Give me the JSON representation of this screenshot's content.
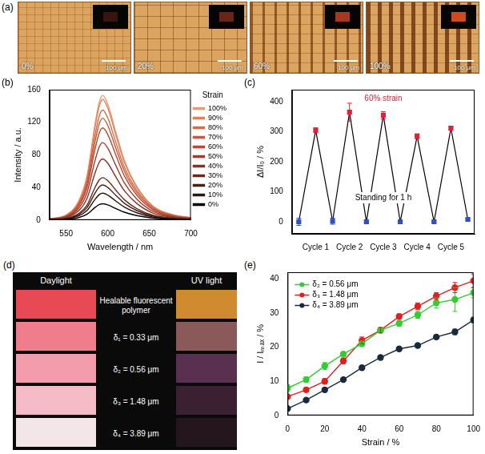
{
  "panel_a": {
    "panel_label": "(a)",
    "labels": [
      "0%",
      "20%",
      "60%",
      "100%"
    ],
    "scale_bar": "100 μm"
  },
  "chart_data": [
    {
      "panel_label": "(b)",
      "type": "line",
      "x_label": "Wavelength / nm",
      "y_label": "Intensity / a.u.",
      "x": [
        530,
        550,
        565,
        575,
        585,
        590,
        594,
        600,
        610,
        620,
        635,
        655,
        680,
        700
      ],
      "series": [
        {
          "name": "0%",
          "color": "#000000",
          "values": [
            0.2,
            0.8,
            3,
            7,
            15.6,
            19,
            20,
            18.6,
            14,
            9.6,
            5.4,
            2.2,
            0.8,
            0.4
          ]
        },
        {
          "name": "10%",
          "color": "#2a1612",
          "values": [
            0.3,
            1.3,
            5,
            11.6,
            25.7,
            31.4,
            33,
            30.7,
            23.1,
            15.8,
            8.9,
            3.6,
            1.3,
            0.7
          ]
        },
        {
          "name": "20%",
          "color": "#4b2016",
          "values": [
            0.4,
            1.7,
            6.5,
            15.1,
            33.5,
            40.9,
            43,
            40,
            30.1,
            20.6,
            11.6,
            4.7,
            1.7,
            0.9
          ]
        },
        {
          "name": "30%",
          "color": "#6a291b",
          "values": [
            0.5,
            2.1,
            7.8,
            18.2,
            40.6,
            49.4,
            52,
            48.4,
            36.4,
            25,
            14,
            5.7,
            2.1,
            1
          ]
        },
        {
          "name": "40%",
          "color": "#873222",
          "values": [
            0.8,
            3,
            11.3,
            26.3,
            58.5,
            71.3,
            75,
            69.8,
            52.5,
            36,
            20.3,
            8.3,
            3,
            1.5
          ]
        },
        {
          "name": "50%",
          "color": "#a03c29",
          "values": [
            1,
            3.8,
            14.3,
            33.3,
            74.1,
            90.3,
            95,
            88.4,
            66.5,
            45.6,
            25.7,
            10.5,
            3.8,
            1.9
          ]
        },
        {
          "name": "60%",
          "color": "#b64a31",
          "values": [
            1.1,
            4.5,
            17,
            39.6,
            88.1,
            107.4,
            113,
            105.1,
            79.1,
            54.2,
            30.5,
            12.4,
            4.5,
            2.3
          ]
        },
        {
          "name": "70%",
          "color": "#c75a3b",
          "values": [
            1.3,
            5,
            18.8,
            43.8,
            97.5,
            118.8,
            125,
            116.3,
            87.5,
            60,
            33.8,
            13.8,
            5,
            2.5
          ]
        },
        {
          "name": "80%",
          "color": "#d56c48",
          "values": [
            1.4,
            5.4,
            20.3,
            47.3,
            105.3,
            128.3,
            135,
            125.6,
            94.5,
            64.8,
            36.5,
            14.9,
            5.4,
            2.7
          ]
        },
        {
          "name": "90%",
          "color": "#df8159",
          "values": [
            1.5,
            5.9,
            22.2,
            51.8,
            115.4,
            140.6,
            148,
            137.6,
            103.6,
            71,
            40,
            16.3,
            5.9,
            3
          ]
        },
        {
          "name": "100%",
          "color": "#ea9a70",
          "values": [
            1.5,
            6.1,
            23,
            53.6,
            119.3,
            145.4,
            153,
            142.3,
            107.1,
            73.4,
            41.3,
            16.8,
            6.1,
            3.1
          ]
        }
      ],
      "xlim": [
        530,
        700
      ],
      "xticks": [
        550,
        600,
        650,
        700
      ],
      "ylim": [
        0,
        160
      ],
      "yticks": [
        0,
        40,
        80,
        120,
        160
      ],
      "legend": "right",
      "legend_title": "Strain",
      "marker": "none",
      "grid": false
    },
    {
      "panel_label": "(c)",
      "type": "line",
      "y_label": "ΔI/I₀ / %",
      "annotations": [
        "60% strain",
        "Standing for 1 h"
      ],
      "x": [
        0,
        1,
        2,
        3,
        4,
        5,
        6,
        7,
        8,
        9,
        10
      ],
      "values": [
        0,
        305,
        2,
        365,
        0,
        355,
        0,
        285,
        0,
        312,
        8
      ],
      "errors": [
        12,
        8,
        10,
        30,
        6,
        12,
        4,
        8,
        3,
        6,
        3
      ],
      "color": "#000000",
      "colors": [
        "#3050c0",
        "#e0203a",
        "#3050c0",
        "#e0203a",
        "#3050c0",
        "#e0203a",
        "#3050c0",
        "#e0203a",
        "#3050c0",
        "#e0203a",
        "#3050c0"
      ],
      "marker": "square",
      "xlim": [
        -0.4,
        10.4
      ],
      "xticks": [
        {
          "value": 1,
          "label": "Cycle 1"
        },
        {
          "value": 3,
          "label": "Cycle 2"
        },
        {
          "value": 5,
          "label": "Cycle 3"
        },
        {
          "value": 7,
          "label": "Cycle 4"
        },
        {
          "value": 9,
          "label": "Cycle 5"
        }
      ],
      "ylim": [
        -40,
        440
      ],
      "yticks": [
        0,
        100,
        200,
        300,
        400
      ],
      "grid": false
    },
    {
      "panel_label": "(e)",
      "type": "line",
      "x_label": "Strain / %",
      "y_label": "I / Iₘₐₓ / %",
      "x": [
        0,
        10,
        20,
        30,
        40,
        50,
        60,
        70,
        80,
        90,
        100
      ],
      "series": [
        {
          "name": "δ₂ = 0.56 μm",
          "color": "#33cc33",
          "values": [
            8,
            10.5,
            14.5,
            18,
            21,
            25,
            27,
            29.5,
            33,
            34,
            36
          ],
          "errors": [
            1,
            0.8,
            1,
            0.6,
            0.8,
            0.6,
            0.8,
            1,
            1.5,
            3.5,
            1.5
          ]
        },
        {
          "name": "δ₃ = 1.48 μm",
          "color": "#e02020",
          "values": [
            5.5,
            7.5,
            10,
            16,
            22,
            25,
            29,
            32,
            35,
            37.5,
            39.5
          ],
          "errors": [
            0.5,
            0.6,
            0.8,
            0.8,
            1,
            0.8,
            0.8,
            1,
            1,
            1.5,
            2
          ]
        },
        {
          "name": "δ₄ = 3.89 μm",
          "color": "#1a2a3a",
          "values": [
            2,
            4.5,
            7.5,
            10.5,
            14,
            17,
            19.5,
            20.5,
            23,
            24.5,
            28
          ],
          "errors": [
            0.4,
            0.4,
            0.5,
            0.5,
            0.6,
            0.5,
            0.5,
            0.6,
            0.6,
            0.8,
            0.8
          ]
        }
      ],
      "xlim": [
        0,
        100
      ],
      "xticks": [
        0,
        20,
        40,
        60,
        80,
        100
      ],
      "ylim": [
        0,
        42
      ],
      "yticks": [
        0,
        10,
        20,
        30,
        40
      ],
      "legend": "upper left",
      "marker": "circle",
      "grid": false
    }
  ],
  "panel_d": {
    "panel_label": "(d)",
    "headings": [
      "Daylight",
      "UV light"
    ],
    "rows": [
      {
        "label": "Healable fluorescent polymer",
        "daylight_color": "#e84a55",
        "uv_color": "#d08a30"
      },
      {
        "label": "δ₁ = 0.33 μm",
        "daylight_color": "#ef7d8c",
        "uv_color": "#8a5a5a"
      },
      {
        "label": "δ₂ = 0.56 μm",
        "daylight_color": "#f29cac",
        "uv_color": "#5a3050"
      },
      {
        "label": "δ₃ = 1.48 μm",
        "daylight_color": "#f5bcc8",
        "uv_color": "#3a2030"
      },
      {
        "label": "δ₄ = 3.89 μm",
        "daylight_color": "#f3e6e8",
        "uv_color": "#24161c"
      }
    ]
  }
}
